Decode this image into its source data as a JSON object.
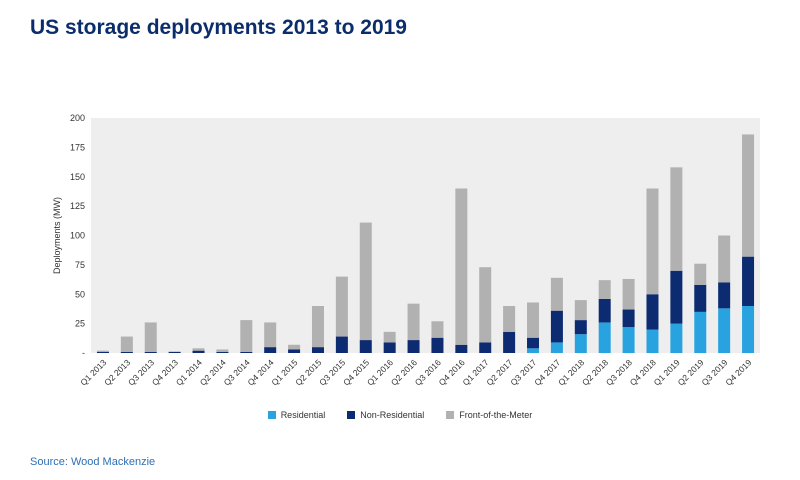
{
  "page": {
    "title": "US storage deployments 2013 to 2019",
    "source": "Source: Wood Mackenzie"
  },
  "colors": {
    "residential": "#29a3e0",
    "non_residential": "#0d2b70",
    "front_of_the_meter": "#b1b1b1",
    "plot_background": "#eeeeee",
    "title": "#0b2d6b",
    "source": "#2e6fb5"
  },
  "chart_data": {
    "type": "bar",
    "stacked": true,
    "title": "US storage deployments 2013 to 2019",
    "xlabel": "",
    "ylabel": "Deployments (MW)",
    "ylim": [
      0,
      200
    ],
    "yticks": [
      0,
      25,
      50,
      75,
      100,
      125,
      150,
      175,
      200
    ],
    "ytick_labels": [
      "-",
      "25",
      "50",
      "75",
      "100",
      "125",
      "150",
      "175",
      "200"
    ],
    "grid": false,
    "legend_position": "bottom",
    "categories": [
      "Q1 2013",
      "Q2 2013",
      "Q3 2013",
      "Q4 2013",
      "Q1 2014",
      "Q2 2014",
      "Q3 2014",
      "Q4 2014",
      "Q1 2015",
      "Q2 2015",
      "Q3 2015",
      "Q4 2015",
      "Q1 2016",
      "Q2 2016",
      "Q3 2016",
      "Q4 2016",
      "Q1 2017",
      "Q2 2017",
      "Q3 2017",
      "Q4 2017",
      "Q1 2018",
      "Q2 2018",
      "Q3 2018",
      "Q4 2018",
      "Q1 2019",
      "Q2 2019",
      "Q3 2019",
      "Q4 2019"
    ],
    "series": [
      {
        "name": "Residential",
        "color_key": "residential",
        "values": [
          0,
          0,
          0,
          0,
          0,
          0,
          0,
          0,
          0,
          0,
          0,
          0,
          0,
          0,
          0,
          0,
          0,
          0,
          4,
          9,
          16,
          26,
          22,
          20,
          25,
          35,
          38,
          40
        ]
      },
      {
        "name": "Non-Residential",
        "color_key": "non_residential",
        "values": [
          1,
          1,
          1,
          1,
          2,
          1,
          1,
          5,
          3,
          5,
          14,
          11,
          9,
          11,
          13,
          7,
          9,
          18,
          9,
          27,
          12,
          20,
          15,
          30,
          45,
          23,
          22,
          42
        ]
      },
      {
        "name": "Front-of-the-Meter",
        "color_key": "front_of_the_meter",
        "values": [
          1,
          13,
          25,
          0,
          2,
          2,
          27,
          21,
          4,
          35,
          51,
          100,
          9,
          31,
          14,
          133,
          64,
          22,
          30,
          28,
          17,
          16,
          26,
          90,
          88,
          18,
          40,
          104
        ]
      }
    ]
  }
}
